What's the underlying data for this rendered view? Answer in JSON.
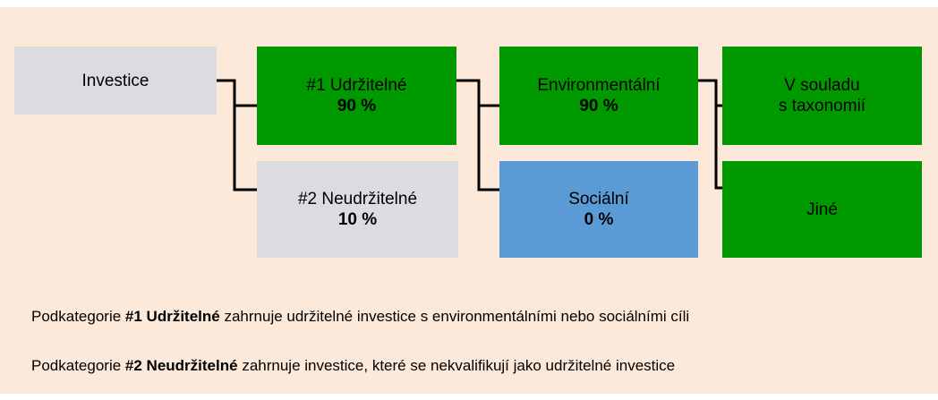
{
  "nodes": [
    {
      "label": "Investice"
    },
    {
      "label": "#1 Udržitelné",
      "value": "90 %"
    },
    {
      "label": "#2 Neudržitelné",
      "value": "10 %"
    },
    {
      "label": "Environmentální",
      "value": "90 %"
    },
    {
      "label": "Sociální",
      "value": "0 %"
    },
    {
      "label": "V souladu",
      "label2": "s taxonomií"
    },
    {
      "label": "Jiné"
    }
  ],
  "notes": [
    {
      "prefix": "Podkategorie",
      "bold": "#1 Udržitelné",
      "rest": "zahrnuje udržitelné investice s environmentálními nebo sociálními cíli"
    },
    {
      "prefix": "Podkategorie",
      "bold": "#2 Neudržitelné",
      "rest": "zahrnuje investice, které se nekvalifikují jako udržitelné investice"
    }
  ]
}
